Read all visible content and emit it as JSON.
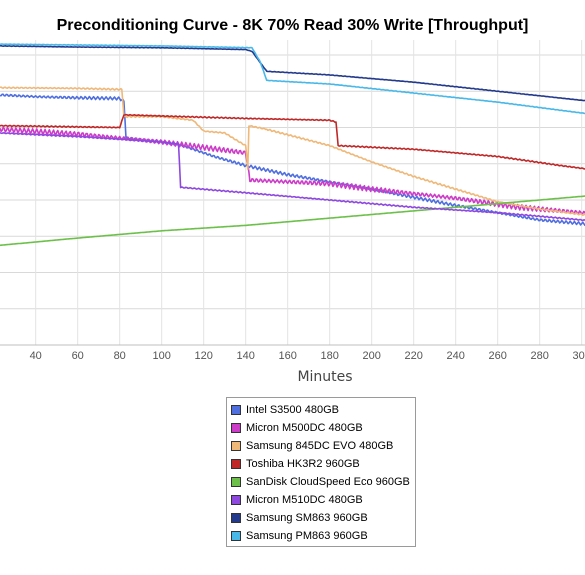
{
  "chart_data": {
    "type": "line",
    "title": "Preconditioning Curve - 8K 70% Read 30% Write [Throughput]",
    "xlabel": "Minutes",
    "ylabel": "",
    "x_ticks": [
      40,
      60,
      80,
      100,
      120,
      140,
      160,
      180,
      200,
      220,
      240,
      260,
      280,
      300
    ],
    "xlim": [
      23,
      310
    ],
    "ylim": [
      0,
      8
    ],
    "grid": true,
    "legend_position": "bottom-center",
    "series": [
      {
        "name": "Intel S3500 480GB",
        "color": "#4f6fe0",
        "jitter": 0.04,
        "points": [
          [
            23,
            6.9
          ],
          [
            40,
            6.85
          ],
          [
            60,
            6.82
          ],
          [
            80,
            6.8
          ],
          [
            82,
            6.72
          ],
          [
            83,
            5.7
          ],
          [
            100,
            5.6
          ],
          [
            110,
            5.5
          ],
          [
            125,
            5.2
          ],
          [
            140,
            4.95
          ],
          [
            160,
            4.7
          ],
          [
            200,
            4.3
          ],
          [
            240,
            3.85
          ],
          [
            260,
            3.65
          ],
          [
            280,
            3.45
          ],
          [
            310,
            3.3
          ]
        ]
      },
      {
        "name": "Micron M500DC 480GB",
        "color": "#cc3cc8",
        "jitter": 0.07,
        "points": [
          [
            23,
            5.95
          ],
          [
            60,
            5.82
          ],
          [
            100,
            5.6
          ],
          [
            140,
            5.3
          ],
          [
            142,
            4.55
          ],
          [
            180,
            4.45
          ],
          [
            200,
            4.3
          ],
          [
            240,
            4.05
          ],
          [
            270,
            3.8
          ],
          [
            300,
            3.65
          ],
          [
            310,
            3.6
          ]
        ]
      },
      {
        "name": "Samsung 845DC EVO 480GB",
        "color": "#f0b878",
        "jitter": 0.02,
        "points": [
          [
            23,
            7.1
          ],
          [
            60,
            7.08
          ],
          [
            81,
            7.05
          ],
          [
            82,
            6.3
          ],
          [
            100,
            6.3
          ],
          [
            115,
            6.2
          ],
          [
            120,
            5.9
          ],
          [
            130,
            5.85
          ],
          [
            137,
            5.6
          ],
          [
            140,
            5.5
          ],
          [
            141,
            4.85
          ],
          [
            141.5,
            6.05
          ],
          [
            150,
            5.95
          ],
          [
            180,
            5.5
          ],
          [
            200,
            5.05
          ],
          [
            220,
            4.65
          ],
          [
            240,
            4.3
          ],
          [
            260,
            3.95
          ],
          [
            280,
            3.75
          ],
          [
            300,
            3.6
          ],
          [
            310,
            3.55
          ]
        ]
      },
      {
        "name": "Toshiba HK3R2 960GB",
        "color": "#c02828",
        "jitter": 0.015,
        "points": [
          [
            23,
            6.05
          ],
          [
            80,
            6.0
          ],
          [
            82,
            6.35
          ],
          [
            110,
            6.3
          ],
          [
            140,
            6.25
          ],
          [
            180,
            6.2
          ],
          [
            183,
            6.15
          ],
          [
            184,
            5.5
          ],
          [
            220,
            5.4
          ],
          [
            260,
            5.2
          ],
          [
            290,
            4.95
          ],
          [
            310,
            4.8
          ]
        ]
      },
      {
        "name": "SanDisk CloudSpeed Eco 960GB",
        "color": "#6cc04a",
        "jitter": 0,
        "points": [
          [
            23,
            2.75
          ],
          [
            60,
            2.95
          ],
          [
            100,
            3.15
          ],
          [
            140,
            3.3
          ],
          [
            180,
            3.5
          ],
          [
            220,
            3.7
          ],
          [
            260,
            3.9
          ],
          [
            300,
            4.1
          ],
          [
            310,
            4.15
          ]
        ]
      },
      {
        "name": "Micron M510DC 480GB",
        "color": "#8e48e0",
        "jitter": 0.015,
        "points": [
          [
            23,
            5.85
          ],
          [
            60,
            5.75
          ],
          [
            100,
            5.6
          ],
          [
            108,
            5.55
          ],
          [
            109,
            4.35
          ],
          [
            140,
            4.2
          ],
          [
            180,
            4.0
          ],
          [
            220,
            3.8
          ],
          [
            260,
            3.65
          ],
          [
            300,
            3.45
          ],
          [
            310,
            3.4
          ]
        ]
      },
      {
        "name": "Samsung SM863 960GB",
        "color": "#233a8c",
        "jitter": 0.006,
        "points": [
          [
            23,
            8.25
          ],
          [
            60,
            8.22
          ],
          [
            100,
            8.2
          ],
          [
            140,
            8.15
          ],
          [
            143,
            8.1
          ],
          [
            150,
            7.55
          ],
          [
            180,
            7.45
          ],
          [
            220,
            7.25
          ],
          [
            260,
            7.0
          ],
          [
            300,
            6.75
          ],
          [
            310,
            6.7
          ]
        ]
      },
      {
        "name": "Samsung PM863 960GB",
        "color": "#48b8e8",
        "jitter": 0.006,
        "points": [
          [
            23,
            8.3
          ],
          [
            100,
            8.25
          ],
          [
            143,
            8.2
          ],
          [
            147,
            7.8
          ],
          [
            150,
            7.3
          ],
          [
            180,
            7.2
          ],
          [
            220,
            6.95
          ],
          [
            260,
            6.7
          ],
          [
            300,
            6.4
          ],
          [
            310,
            6.35
          ]
        ]
      }
    ]
  }
}
